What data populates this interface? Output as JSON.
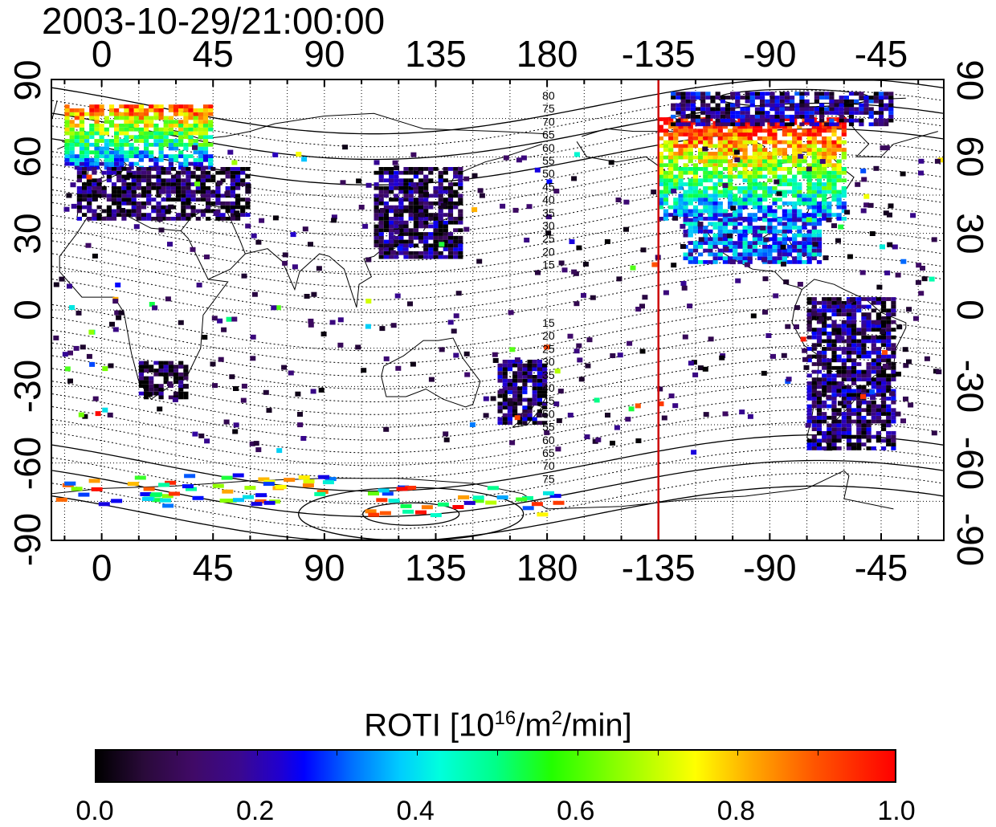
{
  "timestamp": "2003-10-29/21:00:00",
  "axes": {
    "top_lon_labels": [
      "0",
      "45",
      "90",
      "135",
      "180",
      "-135",
      "-90",
      "-45"
    ],
    "bottom_lon_labels": [
      "0",
      "45",
      "90",
      "135",
      "180",
      "-135",
      "-90",
      "-45"
    ],
    "left_lat_labels": [
      "90",
      "60",
      "30",
      "0",
      "-30",
      "-60",
      "-90"
    ],
    "right_lat_labels": [
      "90",
      "60",
      "30",
      "0",
      "-30",
      "-60",
      "-90"
    ],
    "lon_range": [
      -20,
      340
    ],
    "lat_range": [
      -90,
      90
    ],
    "grid": "dotted"
  },
  "magnetic_latitude_labels_north": [
    "80",
    "75",
    "70",
    "65",
    "60",
    "55",
    "50",
    "45",
    "40",
    "35",
    "30",
    "25",
    "20",
    "15"
  ],
  "magnetic_latitude_labels_south": [
    "15",
    "20",
    "25",
    "30",
    "35",
    "40",
    "45",
    "50",
    "55",
    "60",
    "65",
    "70",
    "75"
  ],
  "terminator_marker": {
    "longitude": -135,
    "color": "#cc0000"
  },
  "colorbar": {
    "title": "ROTI  [10",
    "title_sup1": "16",
    "title_mid": "/m",
    "title_sup2": "2",
    "title_end": "/min]",
    "min": 0.0,
    "max": 1.0,
    "tick_labels": [
      "0.0",
      "0.2",
      "0.4",
      "0.6",
      "0.8",
      "1.0"
    ]
  },
  "regions": [
    {
      "name": "europe-north",
      "lon": [
        -15,
        45
      ],
      "lat": [
        55,
        80
      ],
      "level": 0.85
    },
    {
      "name": "europe-asia-low",
      "lon": [
        -10,
        60
      ],
      "lat": [
        35,
        55
      ],
      "level": 0.05
    },
    {
      "name": "east-asia",
      "lon": [
        110,
        145
      ],
      "lat": [
        20,
        55
      ],
      "level": 0.08
    },
    {
      "name": "north-america-high",
      "lon": [
        -135,
        -60
      ],
      "lat": [
        35,
        75
      ],
      "level": 0.95
    },
    {
      "name": "north-america-border",
      "lon": [
        -125,
        -70
      ],
      "lat": [
        18,
        35
      ],
      "level": 0.3
    },
    {
      "name": "canada-arctic",
      "lon": [
        -130,
        -40
      ],
      "lat": [
        72,
        85
      ],
      "level": 0.15
    },
    {
      "name": "south-america",
      "lon": [
        -75,
        -40
      ],
      "lat": [
        -55,
        5
      ],
      "level": 0.1
    },
    {
      "name": "south-africa",
      "lon": [
        15,
        35
      ],
      "lat": [
        -35,
        -20
      ],
      "level": 0.03
    },
    {
      "name": "australia-nz",
      "lon": [
        160,
        180
      ],
      "lat": [
        -45,
        -20
      ],
      "level": 0.1
    }
  ]
}
